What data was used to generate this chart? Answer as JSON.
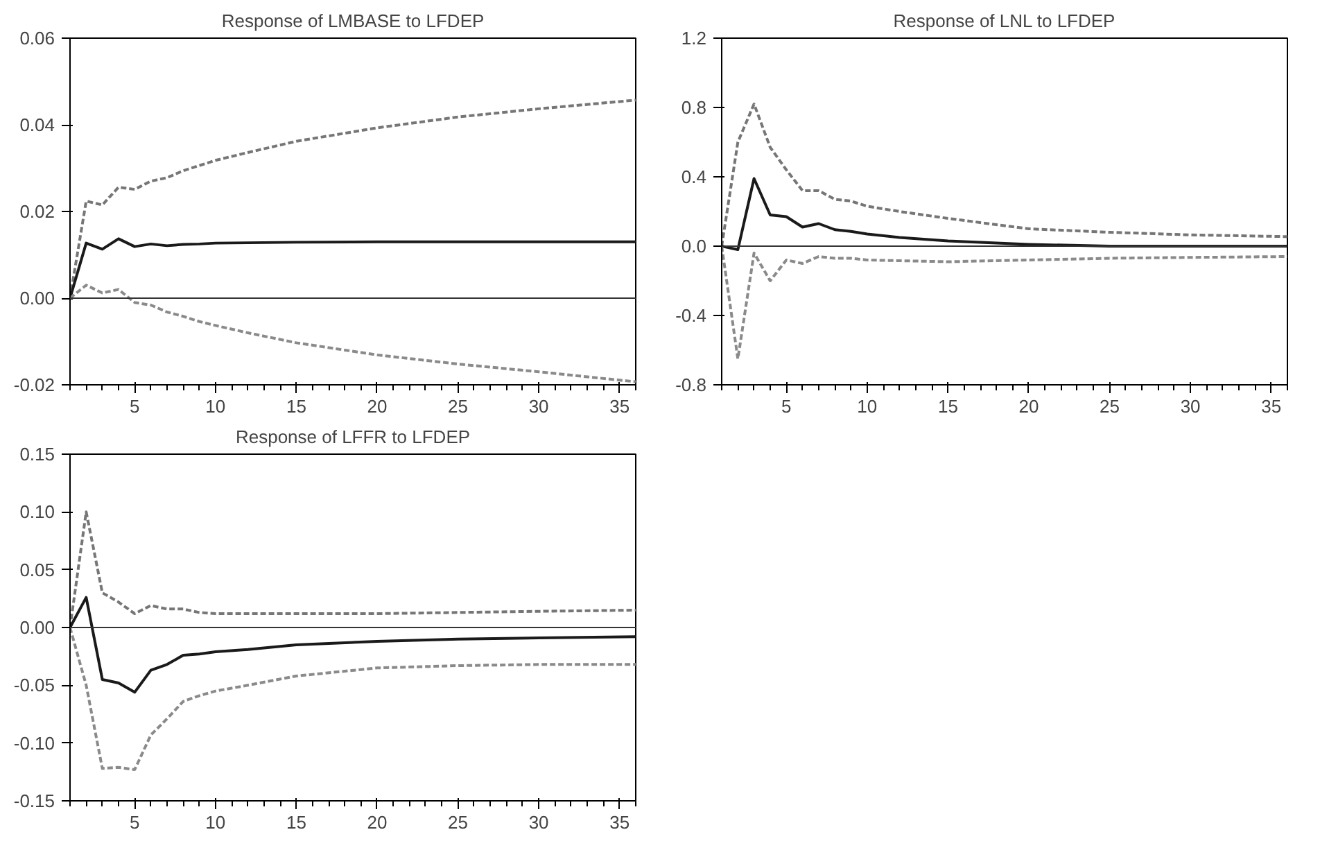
{
  "chart_data": [
    {
      "type": "line",
      "title": "Response of LMBASE to LFDEP",
      "xlim": [
        1,
        36
      ],
      "xticks": [
        5,
        10,
        15,
        20,
        25,
        30,
        35
      ],
      "ylim": [
        -0.02,
        0.06
      ],
      "yticks": [
        {
          "value": -0.02,
          "label": "-0.02"
        },
        {
          "value": 0,
          "label": "0.00"
        },
        {
          "value": 0.02,
          "label": "0.02"
        },
        {
          "value": 0.04,
          "label": "0.04"
        },
        {
          "value": 0.06,
          "label": "0.06"
        }
      ],
      "grid": false,
      "ref_lines": [
        {
          "axis": "y",
          "value": 0,
          "color": "#333333"
        }
      ],
      "series": [
        {
          "color": "#767676",
          "line_style": "dashed",
          "x": [
            1,
            2,
            3,
            4,
            5,
            6,
            7,
            8,
            9,
            10,
            12,
            15,
            20,
            25,
            30,
            36
          ],
          "values": [
            0,
            0.0224,
            0.0215,
            0.0256,
            0.0251,
            0.027,
            0.0278,
            0.0294,
            0.0306,
            0.0318,
            0.0336,
            0.0362,
            0.0393,
            0.0418,
            0.0437,
            0.0457
          ]
        },
        {
          "color": "#1a1a1a",
          "line_style": "solid",
          "x": [
            1,
            2,
            3,
            4,
            5,
            6,
            7,
            8,
            9,
            10,
            15,
            20,
            25,
            30,
            36
          ],
          "values": [
            0,
            0.0127,
            0.0113,
            0.0137,
            0.0119,
            0.0125,
            0.0121,
            0.0124,
            0.0125,
            0.0127,
            0.0129,
            0.013,
            0.013,
            0.013,
            0.013
          ]
        },
        {
          "color": "#8a8a8a",
          "line_style": "dashed",
          "x": [
            1,
            2,
            3,
            4,
            5,
            6,
            7,
            8,
            9,
            10,
            12,
            15,
            20,
            25,
            30,
            36
          ],
          "values": [
            0,
            0.003,
            0.0012,
            0.002,
            -0.001,
            -0.0016,
            -0.0032,
            -0.0042,
            -0.0054,
            -0.0063,
            -0.008,
            -0.0103,
            -0.0131,
            -0.0152,
            -0.017,
            -0.0193
          ]
        }
      ]
    },
    {
      "type": "line",
      "title": "Response of LNL to LFDEP",
      "xlim": [
        1,
        36
      ],
      "xticks": [
        5,
        10,
        15,
        20,
        25,
        30,
        35
      ],
      "ylim": [
        -0.8,
        1.2
      ],
      "yticks": [
        {
          "value": -0.8,
          "label": "-0.8"
        },
        {
          "value": -0.4,
          "label": "-0.4"
        },
        {
          "value": 0,
          "label": "0.0"
        },
        {
          "value": 0.4,
          "label": "0.4"
        },
        {
          "value": 0.8,
          "label": "0.8"
        },
        {
          "value": 1.2,
          "label": "1.2"
        }
      ],
      "grid": false,
      "ref_lines": [
        {
          "axis": "y",
          "value": 0,
          "color": "#333333"
        }
      ],
      "series": [
        {
          "color": "#767676",
          "line_style": "dashed",
          "x": [
            1,
            2,
            3,
            4,
            5,
            6,
            7,
            8,
            9,
            10,
            12,
            15,
            20,
            25,
            30,
            36
          ],
          "values": [
            0,
            0.6,
            0.82,
            0.57,
            0.44,
            0.32,
            0.32,
            0.27,
            0.26,
            0.23,
            0.2,
            0.16,
            0.1,
            0.08,
            0.065,
            0.055
          ]
        },
        {
          "color": "#1a1a1a",
          "line_style": "solid",
          "x": [
            1,
            2,
            3,
            4,
            5,
            6,
            7,
            8,
            9,
            10,
            12,
            15,
            20,
            25,
            30,
            36
          ],
          "values": [
            0,
            -0.02,
            0.39,
            0.18,
            0.17,
            0.11,
            0.13,
            0.095,
            0.085,
            0.07,
            0.05,
            0.03,
            0.01,
            0.0,
            0.0,
            0.0
          ]
        },
        {
          "color": "#8a8a8a",
          "line_style": "dashed",
          "x": [
            1,
            2,
            3,
            4,
            5,
            6,
            7,
            8,
            9,
            10,
            15,
            20,
            25,
            30,
            36
          ],
          "values": [
            0,
            -0.65,
            -0.04,
            -0.2,
            -0.08,
            -0.1,
            -0.06,
            -0.07,
            -0.07,
            -0.08,
            -0.09,
            -0.08,
            -0.07,
            -0.065,
            -0.06
          ]
        }
      ]
    },
    {
      "type": "line",
      "title": "Response of LFFR to LFDEP",
      "xlim": [
        1,
        36
      ],
      "xticks": [
        5,
        10,
        15,
        20,
        25,
        30,
        35
      ],
      "ylim": [
        -0.15,
        0.15
      ],
      "yticks": [
        {
          "value": -0.15,
          "label": "-0.15"
        },
        {
          "value": -0.1,
          "label": "-0.10"
        },
        {
          "value": -0.05,
          "label": "-0.05"
        },
        {
          "value": 0,
          "label": "0.00"
        },
        {
          "value": 0.05,
          "label": "0.05"
        },
        {
          "value": 0.1,
          "label": "0.10"
        },
        {
          "value": 0.15,
          "label": "0.15"
        }
      ],
      "grid": false,
      "ref_lines": [
        {
          "axis": "y",
          "value": 0,
          "color": "#333333"
        }
      ],
      "series": [
        {
          "color": "#767676",
          "line_style": "dashed",
          "x": [
            1,
            2,
            3,
            4,
            5,
            6,
            7,
            8,
            9,
            10,
            15,
            20,
            25,
            30,
            36
          ],
          "values": [
            0,
            0.1,
            0.03,
            0.022,
            0.012,
            0.019,
            0.016,
            0.016,
            0.013,
            0.012,
            0.012,
            0.012,
            0.013,
            0.014,
            0.015
          ]
        },
        {
          "color": "#1a1a1a",
          "line_style": "solid",
          "x": [
            1,
            2,
            3,
            4,
            5,
            6,
            7,
            8,
            9,
            10,
            12,
            15,
            20,
            25,
            30,
            36
          ],
          "values": [
            0,
            0.026,
            -0.045,
            -0.048,
            -0.056,
            -0.037,
            -0.032,
            -0.024,
            -0.023,
            -0.021,
            -0.019,
            -0.015,
            -0.012,
            -0.01,
            -0.009,
            -0.008
          ]
        },
        {
          "color": "#8a8a8a",
          "line_style": "dashed",
          "x": [
            1,
            2,
            3,
            4,
            5,
            6,
            7,
            8,
            9,
            10,
            12,
            15,
            20,
            25,
            30,
            36
          ],
          "values": [
            0,
            -0.05,
            -0.122,
            -0.121,
            -0.123,
            -0.093,
            -0.079,
            -0.064,
            -0.059,
            -0.055,
            -0.05,
            -0.042,
            -0.035,
            -0.033,
            -0.032,
            -0.032
          ]
        }
      ]
    }
  ]
}
